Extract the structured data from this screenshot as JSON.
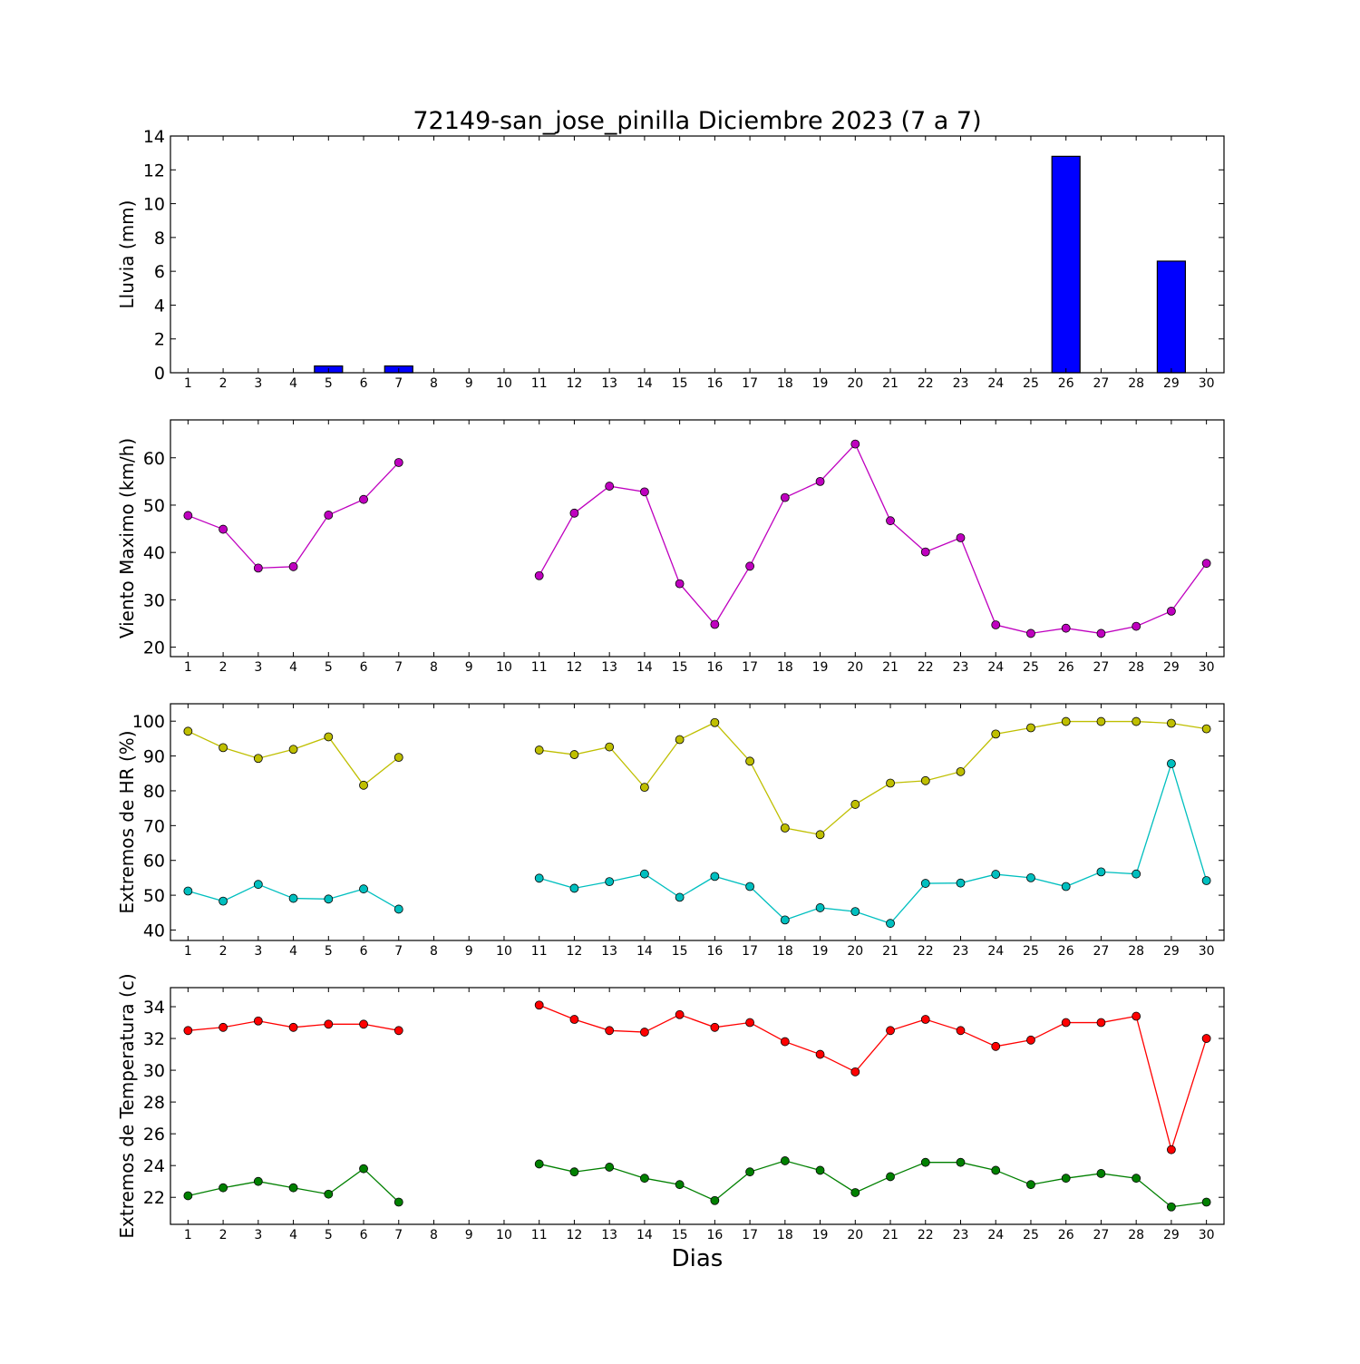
{
  "colors": {
    "rain_bar": "#0000ff",
    "wind": "#bf00bf",
    "hr_max": "#bfbf00",
    "hr_min": "#00bfbf",
    "temp_max": "#ff0000",
    "temp_min": "#008000"
  },
  "chart_data": [
    {
      "type": "bar",
      "title": "72149-san_jose_pinilla Diciembre 2023  (7 a 7)",
      "ylabel": "Lluvia (mm)",
      "xlabel": "",
      "categories": [
        "1",
        "2",
        "3",
        "4",
        "5",
        "6",
        "7",
        "8",
        "9",
        "10",
        "11",
        "12",
        "13",
        "14",
        "15",
        "16",
        "17",
        "18",
        "19",
        "20",
        "21",
        "22",
        "23",
        "24",
        "25",
        "26",
        "27",
        "28",
        "29",
        "30"
      ],
      "values": [
        0,
        0,
        0,
        0,
        0.4,
        0,
        0.4,
        0,
        0,
        0,
        0,
        0,
        0,
        0,
        0,
        0,
        0,
        0,
        0,
        0,
        0,
        0,
        0,
        0,
        0,
        12.8,
        0,
        0,
        6.6,
        0
      ],
      "ylim": [
        0,
        14
      ],
      "yticks": [
        0,
        2,
        4,
        6,
        8,
        10,
        12,
        14
      ],
      "grid": false
    },
    {
      "type": "line",
      "title": "",
      "ylabel": "Viento Maximo (km/h)",
      "xlabel": "",
      "categories": [
        "1",
        "2",
        "3",
        "4",
        "5",
        "6",
        "7",
        "8",
        "9",
        "10",
        "11",
        "12",
        "13",
        "14",
        "15",
        "16",
        "17",
        "18",
        "19",
        "20",
        "21",
        "22",
        "23",
        "24",
        "25",
        "26",
        "27",
        "28",
        "29",
        "30"
      ],
      "series": [
        {
          "values": [
            47.8,
            44.9,
            36.7,
            37.0,
            47.9,
            51.2,
            59.0,
            null,
            null,
            null,
            35.1,
            48.3,
            54.0,
            52.8,
            33.4,
            24.8,
            37.1,
            51.6,
            55.0,
            62.9,
            46.7,
            40.1,
            43.1,
            24.7,
            22.9,
            24.0,
            22.9,
            24.4,
            27.6,
            37.7
          ]
        }
      ],
      "ylim": [
        18,
        68
      ],
      "yticks": [
        20,
        30,
        40,
        50,
        60
      ],
      "grid": false
    },
    {
      "type": "line",
      "title": "",
      "ylabel": "Extremos de HR (%)",
      "xlabel": "",
      "categories": [
        "1",
        "2",
        "3",
        "4",
        "5",
        "6",
        "7",
        "8",
        "9",
        "10",
        "11",
        "12",
        "13",
        "14",
        "15",
        "16",
        "17",
        "18",
        "19",
        "20",
        "21",
        "22",
        "23",
        "24",
        "25",
        "26",
        "27",
        "28",
        "29",
        "30"
      ],
      "series": [
        {
          "values": [
            97.1,
            92.4,
            89.3,
            91.9,
            95.5,
            81.6,
            89.6,
            null,
            null,
            null,
            91.7,
            90.4,
            92.6,
            81.0,
            94.7,
            99.6,
            88.5,
            69.3,
            67.4,
            76.1,
            82.2,
            82.9,
            85.5,
            96.3,
            98.1,
            99.9,
            99.9,
            99.9,
            99.4,
            97.8
          ]
        },
        {
          "values": [
            51.2,
            48.3,
            53.1,
            49.1,
            48.9,
            51.8,
            46.0,
            null,
            null,
            null,
            54.9,
            52.0,
            53.9,
            56.1,
            49.4,
            55.4,
            52.5,
            42.9,
            46.4,
            45.3,
            41.9,
            53.4,
            53.5,
            56.0,
            55.0,
            52.5,
            56.7,
            56.1,
            87.8,
            54.2
          ]
        }
      ],
      "ylim": [
        37,
        105
      ],
      "yticks": [
        40,
        50,
        60,
        70,
        80,
        90,
        100
      ],
      "grid": false
    },
    {
      "type": "line",
      "title": "",
      "ylabel": "Extremos de Temperatura (c)",
      "xlabel": "Dias",
      "categories": [
        "1",
        "2",
        "3",
        "4",
        "5",
        "6",
        "7",
        "8",
        "9",
        "10",
        "11",
        "12",
        "13",
        "14",
        "15",
        "16",
        "17",
        "18",
        "19",
        "20",
        "21",
        "22",
        "23",
        "24",
        "25",
        "26",
        "27",
        "28",
        "29",
        "30"
      ],
      "series": [
        {
          "values": [
            32.5,
            32.7,
            33.1,
            32.7,
            32.9,
            32.9,
            32.5,
            null,
            null,
            null,
            34.1,
            33.2,
            32.5,
            32.4,
            33.5,
            32.7,
            33.0,
            31.8,
            31.0,
            29.9,
            32.5,
            33.2,
            32.5,
            31.5,
            31.9,
            33.0,
            33.0,
            33.4,
            25.0,
            32.0
          ]
        },
        {
          "values": [
            22.1,
            22.6,
            23.0,
            22.6,
            22.2,
            23.8,
            21.7,
            null,
            null,
            null,
            24.1,
            23.6,
            23.9,
            23.2,
            22.8,
            21.8,
            23.6,
            24.3,
            23.7,
            22.3,
            23.3,
            24.2,
            24.2,
            23.7,
            22.8,
            23.2,
            23.5,
            23.2,
            21.4,
            21.7
          ]
        }
      ],
      "ylim": [
        20.3,
        35.2
      ],
      "yticks": [
        22,
        24,
        26,
        28,
        30,
        32,
        34
      ],
      "grid": false
    }
  ]
}
